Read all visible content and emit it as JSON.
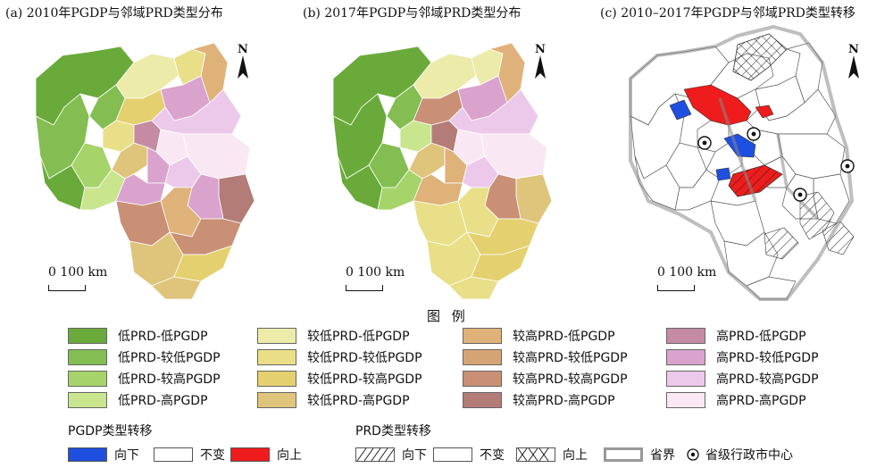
{
  "panels": [
    {
      "title": "(a) 2010年PGDP与邻域PRD类型分布"
    },
    {
      "title": "(b) 2017年PGDP与邻域PRD类型分布"
    },
    {
      "title": "(c) 2010–2017年PGDP与邻域PRD类型转移"
    }
  ],
  "north_label": "N",
  "scale_label": "0 100 km",
  "legend": {
    "title": "图 例",
    "items": [
      {
        "label": "低PRD-低PGDP",
        "color": "#6aaa3a"
      },
      {
        "label": "低PRD-较低PGDP",
        "color": "#84bd52"
      },
      {
        "label": "低PRD-较高PGDP",
        "color": "#a6d46b"
      },
      {
        "label": "低PRD-高PGDP",
        "color": "#c9e58e"
      },
      {
        "label": "较低PRD-低PGDP",
        "color": "#ecebaa"
      },
      {
        "label": "较低PRD-较低PGDP",
        "color": "#e8df88"
      },
      {
        "label": "较低PRD-较高PGDP",
        "color": "#e4d06f"
      },
      {
        "label": "较低PRD-高PGDP",
        "color": "#dfc47c"
      },
      {
        "label": "较高PRD-低PGDP",
        "color": "#dfb27a"
      },
      {
        "label": "较高PRD-较低PGDP",
        "color": "#d5a475"
      },
      {
        "label": "较高PRD-较高PGDP",
        "color": "#c99075"
      },
      {
        "label": "较高PRD-高PGDP",
        "color": "#b37c77"
      },
      {
        "label": "高PRD-低PGDP",
        "color": "#c48ba2"
      },
      {
        "label": "高PRD-较低PGDP",
        "color": "#d9a3cd"
      },
      {
        "label": "高PRD-较高PGDP",
        "color": "#ecc9ea"
      },
      {
        "label": "高PRD-高PGDP",
        "color": "#f9e8f3"
      }
    ]
  },
  "pgdp_transfer": {
    "title": "PGDP类型转移",
    "items": [
      {
        "label": "向下",
        "color": "#1f4fe0"
      },
      {
        "label": "不变",
        "color": "#ffffff"
      },
      {
        "label": "向上",
        "color": "#ee1c1c"
      }
    ]
  },
  "prd_transfer": {
    "title": "PRD类型转移",
    "items": [
      {
        "label": "向下",
        "pattern": "diagonal"
      },
      {
        "label": "不变",
        "pattern": "none"
      },
      {
        "label": "向上",
        "pattern": "cross"
      },
      {
        "label": "省界",
        "pattern": "border"
      },
      {
        "label": "省级行政市中心",
        "pattern": "dot"
      }
    ]
  }
}
